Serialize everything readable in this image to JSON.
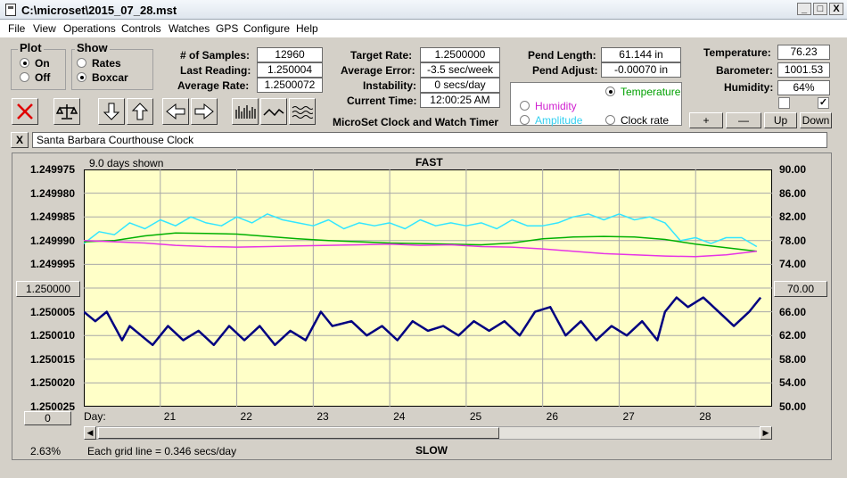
{
  "window": {
    "title": "C:\\microset\\2015_07_28.mst",
    "min_label": "_",
    "max_label": "□",
    "close_label": "X"
  },
  "menu": [
    "File",
    "View",
    "Operations",
    "Controls",
    "Watches",
    "GPS",
    "Configure",
    "Help"
  ],
  "plot_group": {
    "title": "Plot",
    "on": "On",
    "off": "Off",
    "selected": "On"
  },
  "show_group": {
    "title": "Show",
    "rates": "Rates",
    "boxcar": "Boxcar",
    "selected": "Boxcar"
  },
  "stats": {
    "samples_label": "# of Samples:",
    "samples": "12960",
    "last_label": "Last Reading:",
    "last": "1.250004",
    "avg_label": "Average Rate:",
    "avg": "1.2500072",
    "target_label": "Target Rate:",
    "target": "1.2500000",
    "err_label": "Average Error:",
    "err": "-3.5 sec/week",
    "inst_label": "Instability:",
    "inst": "0 secs/day",
    "time_label": "Current Time:",
    "time": "12:00:25 AM",
    "pend_len_label": "Pend Length:",
    "pend_len": "61.144 in",
    "pend_adj_label": "Pend Adjust:",
    "pend_adj": "-0.00070 in",
    "temp_label": "Temperature:",
    "temp": "76.23",
    "baro_label": "Barometer:",
    "baro": "1001.53",
    "hum_label": "Humidity:",
    "hum": "64%"
  },
  "app_title": "MicroSet Clock and Watch Timer",
  "sensor_select": {
    "temperature": "Temperature",
    "humidity": "Humidity",
    "amplitude": "Amplitude",
    "clock_rate": "Clock rate",
    "selected": "Temperature"
  },
  "sensor_buttons": {
    "plus": "+",
    "minus": "—",
    "up": "Up",
    "down": "Down"
  },
  "clock_name": {
    "close": "X",
    "value": "Santa Barbara Courthouse Clock"
  },
  "chart_header": {
    "days_shown": "9.0 days shown",
    "fast": "FAST",
    "slow": "SLOW",
    "grid_note": "Each grid line = 0.346 secs/day",
    "percent": "2.63%",
    "day_label": "Day:",
    "left_button": "1.250000",
    "right_button": "70.00",
    "bottom_button": "0"
  },
  "chart_data": {
    "type": "line",
    "x_ticks": [
      "21",
      "22",
      "23",
      "24",
      "25",
      "26",
      "27",
      "28"
    ],
    "y_left_ticks": [
      "1.249975",
      "1.249980",
      "1.249985",
      "1.249990",
      "1.249995",
      "1.250000",
      "1.250005",
      "1.250010",
      "1.250015",
      "1.250020",
      "1.250025"
    ],
    "y_right_ticks": [
      "90.00",
      "86.00",
      "82.00",
      "78.00",
      "74.00",
      "70.00",
      "66.00",
      "62.00",
      "58.00",
      "54.00",
      "50.00"
    ],
    "ylim_left": [
      1.249975,
      1.250025
    ],
    "ylim_right": [
      50,
      90
    ],
    "xlim": [
      20.0,
      29.0
    ],
    "grid": true,
    "series": [
      {
        "color": "#000080",
        "axis": "left",
        "width": 2.5,
        "x": [
          20.0,
          20.15,
          20.3,
          20.5,
          20.6,
          20.75,
          20.9,
          21.1,
          21.3,
          21.5,
          21.7,
          21.9,
          22.1,
          22.3,
          22.5,
          22.7,
          22.9,
          23.1,
          23.25,
          23.5,
          23.7,
          23.9,
          24.1,
          24.3,
          24.5,
          24.7,
          24.9,
          25.1,
          25.3,
          25.5,
          25.7,
          25.9,
          26.1,
          26.3,
          26.5,
          26.7,
          26.9,
          27.1,
          27.3,
          27.5,
          27.6,
          27.75,
          27.9,
          28.1,
          28.3,
          28.5,
          28.7,
          28.85
        ],
        "y": [
          1.250005,
          1.250007,
          1.250005,
          1.250011,
          1.250008,
          1.25001,
          1.250012,
          1.250008,
          1.250011,
          1.250009,
          1.250012,
          1.250008,
          1.250011,
          1.250008,
          1.250012,
          1.250009,
          1.250011,
          1.250005,
          1.250008,
          1.250007,
          1.25001,
          1.250008,
          1.250011,
          1.250007,
          1.250009,
          1.250008,
          1.25001,
          1.250007,
          1.250009,
          1.250007,
          1.25001,
          1.250005,
          1.250004,
          1.25001,
          1.250007,
          1.250011,
          1.250008,
          1.25001,
          1.250007,
          1.250011,
          1.250005,
          1.250002,
          1.250004,
          1.250002,
          1.250005,
          1.250008,
          1.250005,
          1.250002
        ]
      },
      {
        "color": "#33e6ff",
        "axis": "right",
        "width": 1.5,
        "x": [
          20.0,
          20.2,
          20.4,
          20.6,
          20.8,
          21.0,
          21.2,
          21.4,
          21.6,
          21.8,
          22.0,
          22.2,
          22.4,
          22.6,
          22.8,
          23.0,
          23.2,
          23.4,
          23.6,
          23.8,
          24.0,
          24.2,
          24.4,
          24.6,
          24.8,
          25.0,
          25.2,
          25.4,
          25.6,
          25.8,
          26.0,
          26.2,
          26.4,
          26.6,
          26.8,
          27.0,
          27.2,
          27.4,
          27.6,
          27.8,
          28.0,
          28.2,
          28.4,
          28.6,
          28.8
        ],
        "y": [
          77.5,
          79.5,
          79.0,
          81.0,
          80.0,
          81.5,
          80.5,
          82.0,
          81.0,
          80.5,
          82.0,
          81.0,
          82.5,
          81.5,
          81.0,
          80.5,
          81.5,
          80.0,
          81.0,
          80.5,
          81.0,
          80.0,
          81.5,
          80.5,
          81.0,
          80.5,
          81.0,
          80.0,
          81.5,
          80.5,
          80.5,
          81.0,
          82.0,
          82.5,
          81.5,
          82.5,
          81.5,
          82.0,
          81.0,
          78.0,
          78.5,
          77.5,
          78.5,
          78.5,
          77.0
        ]
      },
      {
        "color": "#00b000",
        "axis": "right",
        "width": 1.5,
        "x": [
          20.0,
          20.4,
          20.8,
          21.2,
          21.6,
          22.0,
          22.4,
          22.8,
          23.2,
          23.6,
          24.0,
          24.4,
          24.8,
          25.2,
          25.6,
          26.0,
          26.4,
          26.8,
          27.2,
          27.6,
          28.0,
          28.4,
          28.8
        ],
        "y": [
          77.8,
          78.0,
          78.8,
          79.3,
          79.2,
          79.1,
          78.7,
          78.3,
          78.0,
          77.8,
          77.6,
          77.5,
          77.4,
          77.3,
          77.6,
          78.3,
          78.6,
          78.7,
          78.6,
          78.2,
          77.4,
          76.8,
          76.2
        ]
      },
      {
        "color": "#e633e6",
        "axis": "right",
        "width": 1.5,
        "x": [
          20.0,
          20.4,
          20.8,
          21.2,
          21.6,
          22.0,
          22.4,
          22.8,
          23.2,
          23.6,
          24.0,
          24.4,
          24.8,
          25.2,
          25.6,
          26.0,
          26.4,
          26.8,
          27.2,
          27.6,
          28.0,
          28.4,
          28.8
        ],
        "y": [
          78.0,
          77.8,
          77.6,
          77.2,
          77.0,
          76.9,
          77.0,
          77.1,
          77.2,
          77.3,
          77.4,
          77.2,
          77.3,
          77.0,
          76.9,
          76.6,
          76.2,
          75.8,
          75.6,
          75.4,
          75.3,
          75.6,
          76.2
        ]
      }
    ]
  },
  "colors": {
    "plot_bg": "#ffffc8",
    "temperature": "#00b000",
    "humidity": "#e633e6",
    "amplitude": "#33e6ff",
    "rate": "#000080"
  }
}
